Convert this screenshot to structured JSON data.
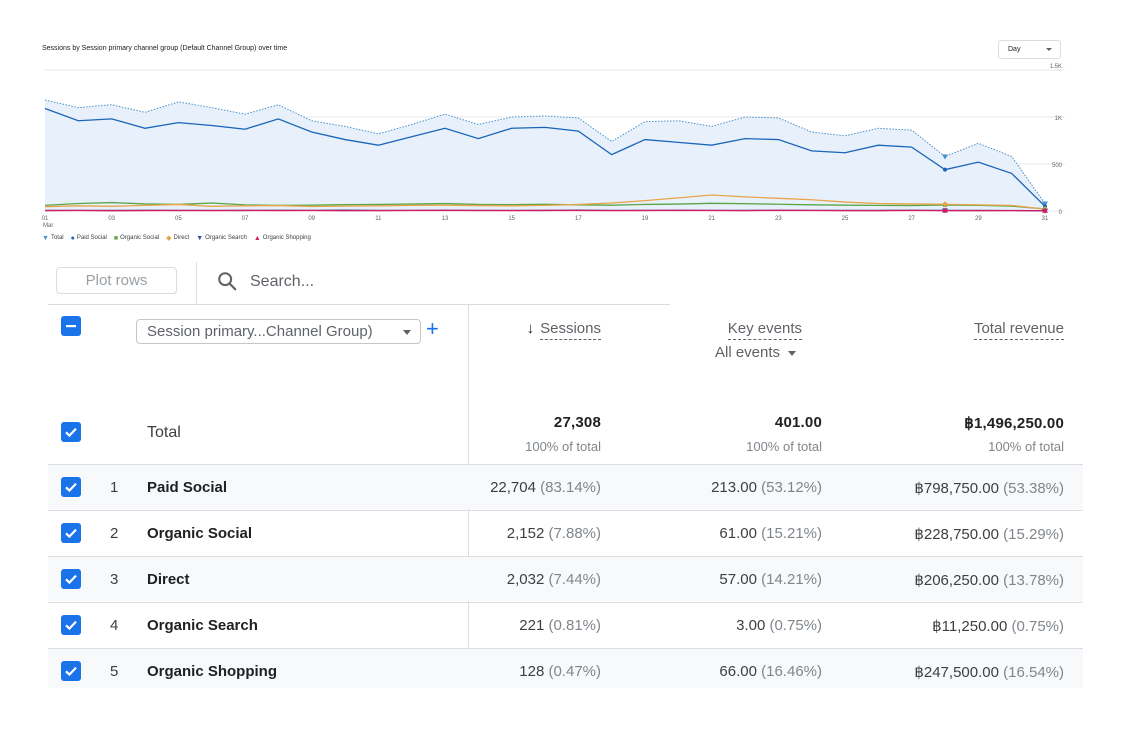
{
  "chart": {
    "title": "Sessions by Session primary channel group (Default Channel Group) over time",
    "granularity": "Day"
  },
  "chart_data": {
    "type": "line",
    "x": [
      1,
      2,
      3,
      4,
      5,
      6,
      7,
      8,
      9,
      10,
      11,
      12,
      13,
      14,
      15,
      16,
      17,
      18,
      19,
      20,
      21,
      22,
      23,
      24,
      25,
      26,
      27,
      28,
      29,
      30,
      31
    ],
    "x_tick_labels": [
      "01",
      "03",
      "05",
      "07",
      "09",
      "11",
      "13",
      "15",
      "17",
      "19",
      "21",
      "23",
      "25",
      "27",
      "29",
      "31"
    ],
    "x_month_label": "Mar",
    "y_ticks": [
      "0",
      "500",
      "1K",
      "1.5K"
    ],
    "ylim": [
      0,
      1500
    ],
    "grid": true,
    "legend_position": "bottom-left",
    "series": [
      {
        "name": "Total",
        "color": "#4a90c8",
        "fill": "#e8f1fb",
        "dotted": true,
        "values": [
          1180,
          1100,
          1130,
          1050,
          1160,
          1100,
          1030,
          1130,
          960,
          900,
          820,
          920,
          1030,
          920,
          1000,
          1010,
          990,
          740,
          950,
          960,
          900,
          1000,
          990,
          840,
          800,
          880,
          860,
          580,
          720,
          580,
          80
        ]
      },
      {
        "name": "Paid Social",
        "color": "#1a65b8",
        "values": [
          1090,
          960,
          980,
          880,
          940,
          910,
          870,
          980,
          840,
          760,
          700,
          790,
          880,
          770,
          880,
          890,
          850,
          600,
          760,
          730,
          700,
          770,
          760,
          640,
          620,
          700,
          680,
          440,
          520,
          400,
          50
        ]
      },
      {
        "name": "Organic Social",
        "color": "#5aa545",
        "values": [
          60,
          80,
          90,
          75,
          70,
          85,
          65,
          60,
          62,
          68,
          70,
          74,
          80,
          70,
          68,
          72,
          66,
          62,
          70,
          74,
          82,
          78,
          72,
          66,
          62,
          60,
          58,
          64,
          60,
          52,
          22
        ]
      },
      {
        "name": "Direct",
        "color": "#e8a44b",
        "values": [
          45,
          55,
          50,
          60,
          70,
          50,
          55,
          58,
          48,
          52,
          55,
          60,
          62,
          58,
          55,
          60,
          70,
          85,
          110,
          140,
          170,
          150,
          135,
          120,
          95,
          80,
          75,
          72,
          65,
          60,
          20
        ]
      },
      {
        "name": "Organic Search",
        "color": "#3c4b99",
        "values": [
          6,
          7,
          6,
          8,
          6,
          7,
          6,
          8,
          7,
          9,
          6,
          7,
          8,
          6,
          7,
          6,
          9,
          7,
          6,
          8,
          7,
          6,
          8,
          7,
          6,
          7,
          8,
          6,
          7,
          5,
          2
        ]
      },
      {
        "name": "Organic Shopping",
        "color": "#d81b60",
        "values": [
          4,
          5,
          3,
          4,
          5,
          4,
          6,
          4,
          5,
          3,
          4,
          5,
          6,
          5,
          4,
          6,
          5,
          4,
          5,
          6,
          5,
          4,
          6,
          5,
          4,
          3,
          5,
          4,
          3,
          4,
          3
        ]
      }
    ]
  },
  "colors": {
    "accent": "#1a73e8"
  },
  "toolbar": {
    "plot_rows_label": "Plot rows",
    "search_placeholder": "Search..."
  },
  "table": {
    "dimension_label": "Session primary...Channel Group)",
    "columns": [
      {
        "label": "Sessions",
        "sorted": "desc"
      },
      {
        "label": "Key events",
        "sub": "All events"
      },
      {
        "label": "Total revenue"
      }
    ],
    "total": {
      "label": "Total",
      "sessions": "27,308",
      "sessions_sub": "100% of total",
      "key_events": "401.00",
      "key_events_sub": "100% of total",
      "revenue": "฿1,496,250.00",
      "revenue_sub": "100% of total"
    },
    "rows": [
      {
        "index": "1",
        "name": "Paid Social",
        "sessions": "22,704",
        "sessions_pct": "(83.14%)",
        "key_events": "213.00",
        "key_events_pct": "(53.12%)",
        "revenue": "฿798,750.00",
        "revenue_pct": "(53.38%)"
      },
      {
        "index": "2",
        "name": "Organic Social",
        "sessions": "2,152",
        "sessions_pct": "(7.88%)",
        "key_events": "61.00",
        "key_events_pct": "(15.21%)",
        "revenue": "฿228,750.00",
        "revenue_pct": "(15.29%)"
      },
      {
        "index": "3",
        "name": "Direct",
        "sessions": "2,032",
        "sessions_pct": "(7.44%)",
        "key_events": "57.00",
        "key_events_pct": "(14.21%)",
        "revenue": "฿206,250.00",
        "revenue_pct": "(13.78%)"
      },
      {
        "index": "4",
        "name": "Organic Search",
        "sessions": "221",
        "sessions_pct": "(0.81%)",
        "key_events": "3.00",
        "key_events_pct": "(0.75%)",
        "revenue": "฿11,250.00",
        "revenue_pct": "(0.75%)"
      },
      {
        "index": "5",
        "name": "Organic Shopping",
        "sessions": "128",
        "sessions_pct": "(0.47%)",
        "key_events": "66.00",
        "key_events_pct": "(16.46%)",
        "revenue": "฿247,500.00",
        "revenue_pct": "(16.54%)"
      }
    ]
  }
}
